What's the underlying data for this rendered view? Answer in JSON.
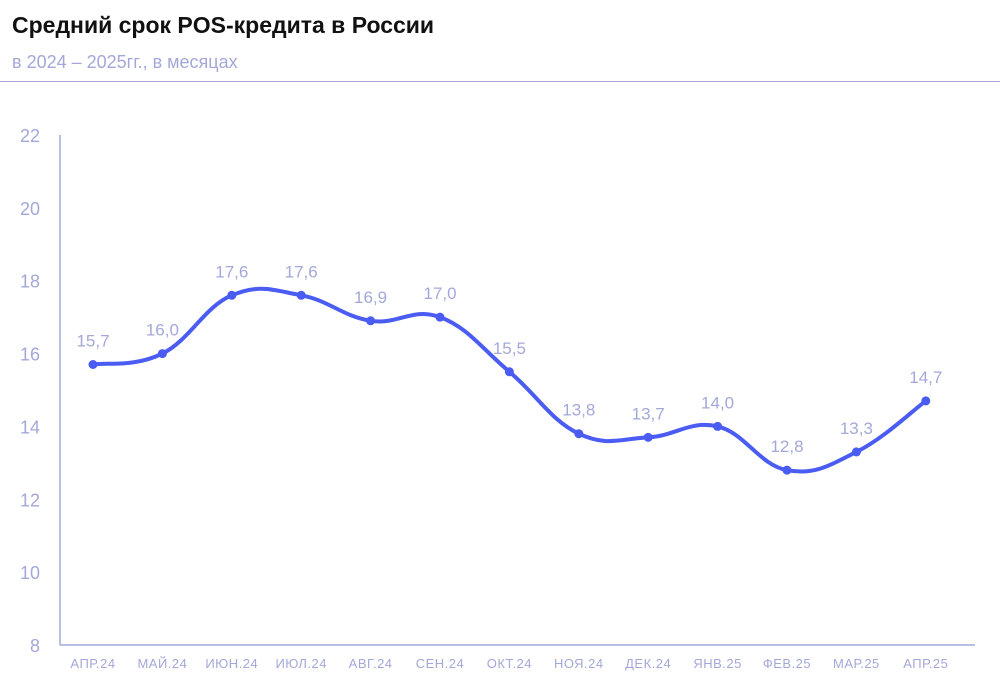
{
  "chart_data": {
    "type": "line",
    "title": "Средний срок POS-кредита в России",
    "subtitle": "в 2024 – 2025гг., в месяцах",
    "categories": [
      "АПР.24",
      "МАЙ.24",
      "ИЮН.24",
      "ИЮЛ.24",
      "АВГ.24",
      "СЕН.24",
      "ОКТ.24",
      "НОЯ.24",
      "ДЕК.24",
      "ЯНВ.25",
      "ФЕВ.25",
      "МАР.25",
      "АПР.25"
    ],
    "values": [
      15.7,
      16.0,
      17.6,
      17.6,
      16.9,
      17.0,
      15.5,
      13.8,
      13.7,
      14.0,
      12.8,
      13.3,
      14.7
    ],
    "labels": [
      "15,7",
      "16,0",
      "17,6",
      "17,6",
      "16,9",
      "17,0",
      "15,5",
      "13,8",
      "13,7",
      "14,0",
      "12,8",
      "13,3",
      "14,7"
    ],
    "ylim": [
      8,
      22
    ],
    "yticks": [
      8,
      10,
      12,
      14,
      16,
      18,
      20,
      22
    ],
    "grid": false,
    "colors": {
      "line": "#4a5cf2",
      "axis": "#a3a8d9"
    }
  }
}
